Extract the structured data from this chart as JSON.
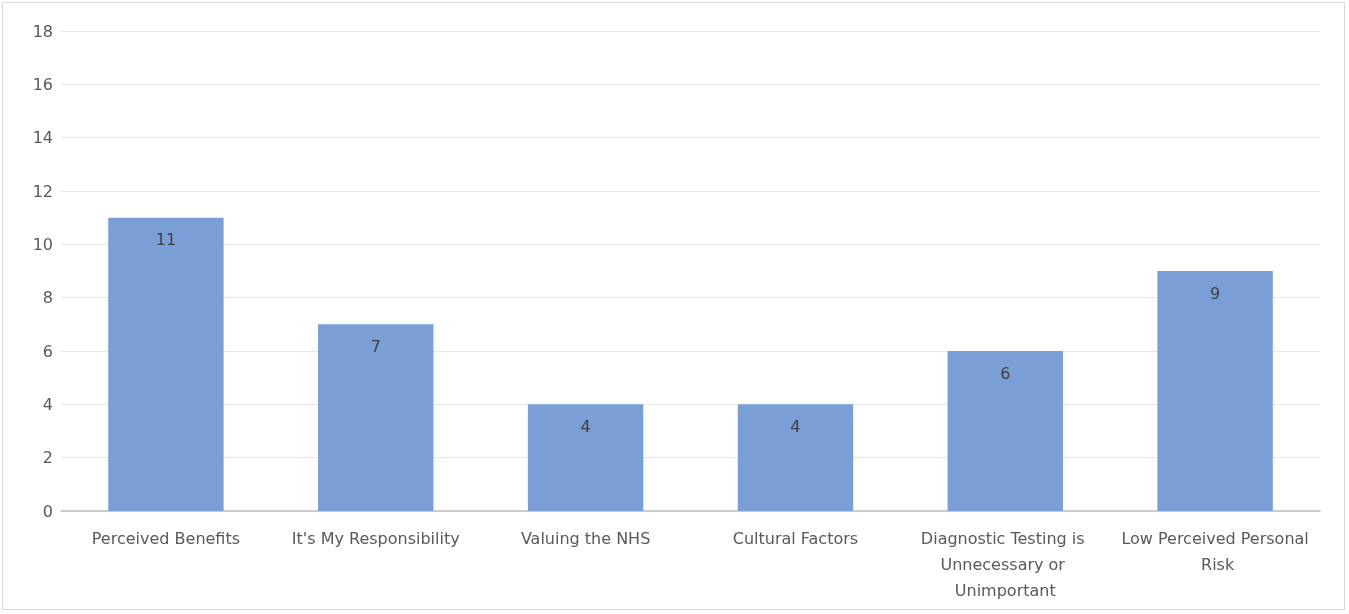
{
  "chart_data": {
    "type": "bar",
    "categories": [
      "Perceived Benefits",
      "It's My Responsibility",
      "Valuing the NHS",
      "Cultural Factors",
      "Diagnostic Testing is Unnecessary or Unimportant",
      "Low Perceived Personal Risk"
    ],
    "values": [
      11,
      7,
      4,
      4,
      6,
      9
    ],
    "color": "#7a9fd7",
    "ylim": [
      0,
      18
    ],
    "yticks": [
      0,
      2,
      4,
      6,
      8,
      10,
      12,
      14,
      16,
      18
    ],
    "grid": "y",
    "data_labels": true
  }
}
